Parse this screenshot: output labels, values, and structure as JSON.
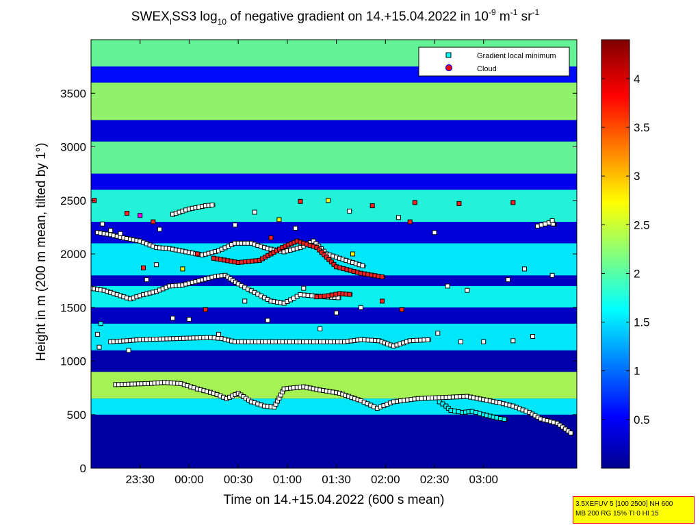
{
  "chart_data": {
    "type": "heatmap",
    "title_parts": {
      "pre": "SWEX",
      "sub1": "I",
      "mid": "SS3 log",
      "sub2": "10",
      "post": " of negative gradient on 14.+15.04.2022 in 10",
      "sup1": "-9",
      "unit_m": " m",
      "sup2": "-1",
      "unit_sr": " sr",
      "sup3": "-1"
    },
    "xlabel": "Time on 14.+15.04.2022 (600 s mean)",
    "ylabel": "Height in m (200 m mean, tilted by 1°)",
    "x_tick_labels": [
      "23:30",
      "00:00",
      "00:30",
      "01:00",
      "01:30",
      "02:00",
      "02:30",
      "03:00"
    ],
    "x_tick_minutes": [
      1410,
      1440,
      1470,
      1500,
      1530,
      1560,
      1590,
      1620
    ],
    "xlim_minutes": [
      1380,
      1677
    ],
    "y_ticks": [
      0,
      500,
      1000,
      1500,
      2000,
      2500,
      3000,
      3500
    ],
    "ylim": [
      0,
      4000
    ],
    "colorbar": {
      "ticks": [
        0.5,
        1,
        1.5,
        2,
        2.5,
        3,
        3.5,
        4
      ],
      "tick_labels": [
        "0.5",
        "1",
        "1.5",
        "2",
        "2.5",
        "3",
        "3.5",
        "4"
      ],
      "range": [
        0,
        4.4
      ],
      "colormap": "jet"
    },
    "legend": {
      "position": "top-right",
      "entries": [
        {
          "label": "Gradient local minimum",
          "marker": "square",
          "color": "#00ffff"
        },
        {
          "label": "Cloud",
          "marker": "circle",
          "color": "#ff0000"
        }
      ]
    },
    "heatmap_bands": [
      {
        "y0": 0,
        "y1": 500,
        "value": 0.15
      },
      {
        "y0": 500,
        "y1": 650,
        "value": 1.6
      },
      {
        "y0": 650,
        "y1": 900,
        "value": 2.4
      },
      {
        "y0": 900,
        "y1": 1100,
        "value": 0.2
      },
      {
        "y0": 1100,
        "y1": 1350,
        "value": 1.6
      },
      {
        "y0": 1350,
        "y1": 1500,
        "value": 0.3
      },
      {
        "y0": 1500,
        "y1": 1700,
        "value": 1.7
      },
      {
        "y0": 1700,
        "y1": 1800,
        "value": 0.3
      },
      {
        "y0": 1800,
        "y1": 2100,
        "value": 1.6
      },
      {
        "y0": 2100,
        "y1": 2300,
        "value": 0.4
      },
      {
        "y0": 2300,
        "y1": 2600,
        "value": 1.8
      },
      {
        "y0": 2600,
        "y1": 2750,
        "value": 0.5
      },
      {
        "y0": 2750,
        "y1": 3050,
        "value": 2.1
      },
      {
        "y0": 3050,
        "y1": 3250,
        "value": 0.4
      },
      {
        "y0": 3250,
        "y1": 3600,
        "value": 2.3
      },
      {
        "y0": 3600,
        "y1": 3750,
        "value": 0.6
      },
      {
        "y0": 3750,
        "y1": 4000,
        "value": 2.1
      }
    ],
    "layers": [
      {
        "name": "layer-800",
        "color": "#ffffff",
        "points": [
          [
            1395,
            780
          ],
          [
            1405,
            785
          ],
          [
            1415,
            790
          ],
          [
            1425,
            800
          ],
          [
            1435,
            790
          ],
          [
            1445,
            740
          ],
          [
            1455,
            700
          ],
          [
            1463,
            650
          ],
          [
            1470,
            700
          ],
          [
            1478,
            620
          ],
          [
            1486,
            580
          ],
          [
            1492,
            570
          ],
          [
            1498,
            740
          ],
          [
            1510,
            760
          ],
          [
            1520,
            730
          ],
          [
            1532,
            700
          ],
          [
            1545,
            630
          ],
          [
            1555,
            560
          ],
          [
            1565,
            620
          ],
          [
            1580,
            650
          ],
          [
            1595,
            660
          ],
          [
            1610,
            670
          ],
          [
            1620,
            640
          ],
          [
            1630,
            610
          ],
          [
            1638,
            580
          ],
          [
            1648,
            520
          ],
          [
            1655,
            460
          ],
          [
            1665,
            420
          ],
          [
            1675,
            310
          ]
        ]
      },
      {
        "name": "layer-1200",
        "color": "#ffffff",
        "points": [
          [
            1392,
            1180
          ],
          [
            1402,
            1190
          ],
          [
            1410,
            1200
          ],
          [
            1453,
            1220
          ],
          [
            1460,
            1210
          ],
          [
            1468,
            1180
          ],
          [
            1535,
            1180
          ],
          [
            1545,
            1200
          ],
          [
            1556,
            1190
          ],
          [
            1565,
            1140
          ],
          [
            1575,
            1190
          ],
          [
            1588,
            1200
          ]
        ]
      },
      {
        "name": "layer-1650",
        "color": "#ffffff",
        "points": [
          [
            1380,
            1680
          ],
          [
            1388,
            1660
          ],
          [
            1396,
            1620
          ],
          [
            1404,
            1580
          ],
          [
            1412,
            1620
          ],
          [
            1420,
            1650
          ],
          [
            1428,
            1700
          ],
          [
            1436,
            1710
          ],
          [
            1446,
            1750
          ],
          [
            1456,
            1790
          ],
          [
            1462,
            1800
          ],
          [
            1470,
            1720
          ],
          [
            1480,
            1640
          ],
          [
            1490,
            1560
          ],
          [
            1498,
            1540
          ],
          [
            1508,
            1620
          ],
          [
            1515,
            1610
          ],
          [
            1523,
            1600
          ],
          [
            1533,
            1590
          ]
        ]
      },
      {
        "name": "layer-2000",
        "color": "#ffffff",
        "points": [
          [
            1384,
            2200
          ],
          [
            1392,
            2180
          ],
          [
            1400,
            2150
          ],
          [
            1410,
            2120
          ],
          [
            1420,
            2060
          ],
          [
            1428,
            2050
          ],
          [
            1438,
            2020
          ],
          [
            1448,
            1990
          ],
          [
            1458,
            2030
          ],
          [
            1468,
            2100
          ],
          [
            1478,
            2100
          ],
          [
            1488,
            2050
          ],
          [
            1498,
            2020
          ],
          [
            1508,
            2060
          ],
          [
            1516,
            2120
          ],
          [
            1524,
            2000
          ],
          [
            1532,
            1960
          ],
          [
            1540,
            1920
          ],
          [
            1548,
            1880
          ]
        ]
      },
      {
        "name": "layer-2400",
        "color": "#ffffff",
        "points": [
          [
            1430,
            2370
          ],
          [
            1440,
            2420
          ],
          [
            1450,
            2450
          ],
          [
            1456,
            2460
          ]
        ]
      },
      {
        "name": "layer-2250",
        "color": "#ffffff",
        "points": [
          [
            1653,
            2260
          ],
          [
            1660,
            2290
          ],
          [
            1665,
            2270
          ]
        ]
      },
      {
        "name": "cloud-2000",
        "color": "#ff2020",
        "points": [
          [
            1455,
            1960
          ],
          [
            1470,
            1920
          ],
          [
            1483,
            1940
          ],
          [
            1497,
            2060
          ],
          [
            1506,
            2120
          ],
          [
            1518,
            2060
          ],
          [
            1530,
            1880
          ],
          [
            1545,
            1820
          ],
          [
            1560,
            1780
          ]
        ]
      },
      {
        "name": "cloud-1600",
        "color": "#ff2020",
        "points": [
          [
            1518,
            1600
          ],
          [
            1525,
            1610
          ],
          [
            1532,
            1630
          ],
          [
            1540,
            1620
          ]
        ]
      },
      {
        "name": "cyan-600",
        "color": "#00ffff",
        "points": [
          [
            1593,
            620
          ],
          [
            1597,
            580
          ],
          [
            1600,
            540
          ],
          [
            1607,
            520
          ],
          [
            1613,
            530
          ],
          [
            1620,
            500
          ],
          [
            1628,
            470
          ],
          [
            1635,
            450
          ]
        ]
      }
    ],
    "scatter_points": [
      [
        1382,
        2500,
        "#ff2020"
      ],
      [
        1387,
        2280,
        "#ffffff"
      ],
      [
        1392,
        2220,
        "#ffffff"
      ],
      [
        1398,
        2190,
        "#ffffff"
      ],
      [
        1402,
        2380,
        "#ff2020"
      ],
      [
        1410,
        2360,
        "#ff00ff"
      ],
      [
        1418,
        2300,
        "#ff2020"
      ],
      [
        1422,
        2230,
        "#ffffff"
      ],
      [
        1412,
        1870,
        "#ff2020"
      ],
      [
        1420,
        1900,
        "#ffffff"
      ],
      [
        1414,
        1760,
        "#ffffff"
      ],
      [
        1430,
        1400,
        "#ffffff"
      ],
      [
        1386,
        1350,
        "#00ffff"
      ],
      [
        1384,
        1250,
        "#ffffff"
      ],
      [
        1385,
        1130,
        "#ffffff"
      ],
      [
        1403,
        1100,
        "#ffffff"
      ],
      [
        1440,
        1390,
        "#ffffff"
      ],
      [
        1450,
        1480,
        "#ff2020"
      ],
      [
        1458,
        1250,
        "#ffffff"
      ],
      [
        1474,
        1560,
        "#ffffff"
      ],
      [
        1488,
        1380,
        "#ffffff"
      ],
      [
        1510,
        1680,
        "#ffffff"
      ],
      [
        1520,
        1300,
        "#ffffff"
      ],
      [
        1530,
        1450,
        "#ffffff"
      ],
      [
        1545,
        1500,
        "#ffffff"
      ],
      [
        1558,
        1560,
        "#ff2020"
      ],
      [
        1570,
        1480,
        "#ff2020"
      ],
      [
        1592,
        1260,
        "#ffffff"
      ],
      [
        1606,
        1180,
        "#ffffff"
      ],
      [
        1620,
        1180,
        "#ffffff"
      ],
      [
        1638,
        1190,
        "#ffffff"
      ],
      [
        1650,
        1230,
        "#ffffff"
      ],
      [
        1468,
        2270,
        "#ffffff"
      ],
      [
        1480,
        2390,
        "#ffffff"
      ],
      [
        1495,
        2320,
        "#ffff00"
      ],
      [
        1505,
        2240,
        "#ffffff"
      ],
      [
        1508,
        2490,
        "#ff2020"
      ],
      [
        1525,
        2500,
        "#ffff00"
      ],
      [
        1538,
        2400,
        "#ffffff"
      ],
      [
        1552,
        2450,
        "#ff2020"
      ],
      [
        1568,
        2340,
        "#ffffff"
      ],
      [
        1575,
        2300,
        "#ff2020"
      ],
      [
        1590,
        2200,
        "#ffffff"
      ],
      [
        1605,
        2470,
        "#ff2020"
      ],
      [
        1638,
        2480,
        "#ff2020"
      ],
      [
        1662,
        2310,
        "#ffffff"
      ],
      [
        1645,
        1860,
        "#ffffff"
      ],
      [
        1662,
        1800,
        "#ffffff"
      ],
      [
        1598,
        1700,
        "#ffffff"
      ],
      [
        1610,
        1660,
        "#ffffff"
      ],
      [
        1635,
        1760,
        "#ffffff"
      ],
      [
        1578,
        2480,
        "#ff2020"
      ],
      [
        1445,
        2000,
        "#ff2020"
      ],
      [
        1436,
        1860,
        "#ffff00"
      ],
      [
        1540,
        2000,
        "#ffff00"
      ],
      [
        1490,
        2150,
        "#ff2020"
      ]
    ]
  },
  "info_box": {
    "line1": "3.5XEFUV 5 [100 2500] NH 600",
    "line2": "MB 200 RG 15% TI 0 HI 15"
  }
}
